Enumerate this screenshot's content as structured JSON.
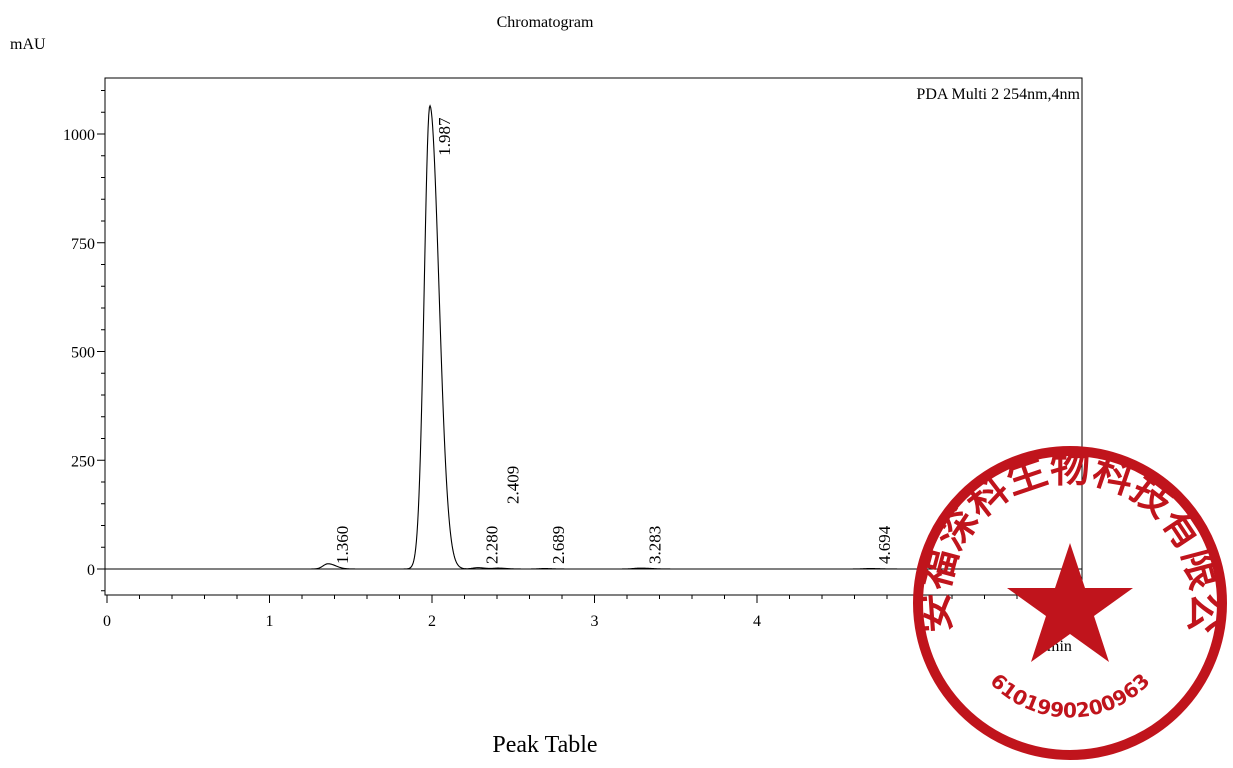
{
  "chart_data": {
    "type": "line",
    "title": "Chromatogram",
    "ylabel": "mAU",
    "xlabel": "min",
    "legend": "PDA Multi 2 254nm,4nm",
    "xlim": [
      0,
      6
    ],
    "ylim": [
      -55,
      1120
    ],
    "xticks": [
      0,
      1,
      2,
      3,
      4,
      5
    ],
    "xtick_labels": [
      "0",
      "1",
      "2",
      "3",
      "4",
      "5"
    ],
    "yticks": [
      0,
      250,
      500,
      750,
      1000
    ],
    "ytick_labels": [
      "0",
      "250",
      "500",
      "750",
      "1000"
    ],
    "peaks": [
      {
        "label": "1.360",
        "rt": 1.36,
        "height": 12,
        "width": 0.03
      },
      {
        "label": "1.987",
        "rt": 1.987,
        "height": 1065,
        "width": 0.035
      },
      {
        "label": "2.280",
        "rt": 2.28,
        "height": 3,
        "width": 0.03
      },
      {
        "label": "2.409",
        "rt": 2.409,
        "height": 2,
        "width": 0.03
      },
      {
        "label": "2.689",
        "rt": 2.689,
        "height": 1,
        "width": 0.03
      },
      {
        "label": "3.283",
        "rt": 3.283,
        "height": 2,
        "width": 0.04
      },
      {
        "label": "4.694",
        "rt": 4.694,
        "height": 1,
        "width": 0.04
      }
    ]
  },
  "page": {
    "title": "Chromatogram",
    "y_unit": "mAU",
    "peak_table_heading": "Peak Table"
  },
  "stamp": {
    "text": "西安福深科生物科技有限公司",
    "number": "6101990200963",
    "color": "#c0141c"
  }
}
